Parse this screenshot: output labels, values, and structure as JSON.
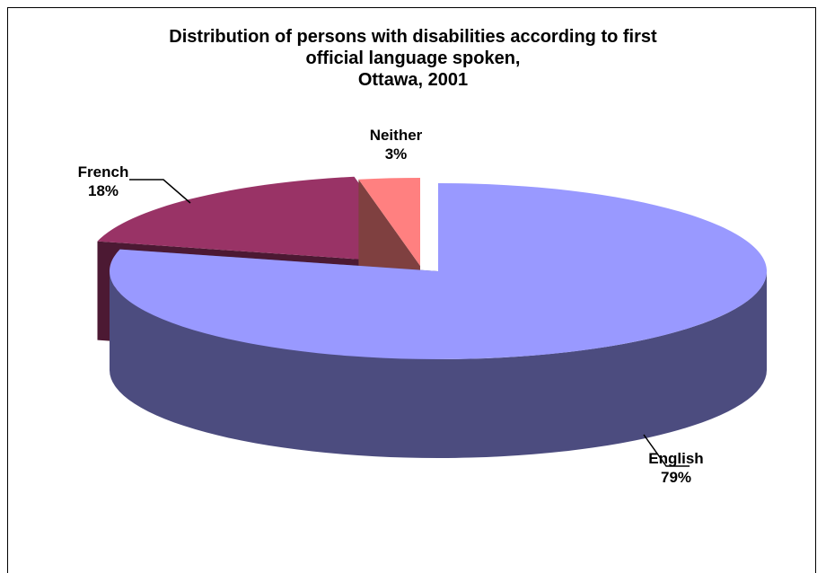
{
  "chart_data": {
    "type": "pie",
    "title_lines": [
      "Distribution of persons with disabilities according to first",
      "official language spoken,",
      "Ottawa, 2001"
    ],
    "slices": [
      {
        "label": "English",
        "value": 79,
        "value_label": "79%",
        "top_color": "#9999ff",
        "side_color": "#4c4c7f"
      },
      {
        "label": "French",
        "value": 18,
        "value_label": "18%",
        "top_color": "#993366",
        "side_color": "#4c1933"
      },
      {
        "label": "Neither",
        "value": 3,
        "value_label": "3%",
        "top_color": "#ff8080",
        "side_color": "#7f4040"
      }
    ],
    "style": "3d-exploded",
    "legend": "none",
    "data_labels": "category-and-percent"
  }
}
